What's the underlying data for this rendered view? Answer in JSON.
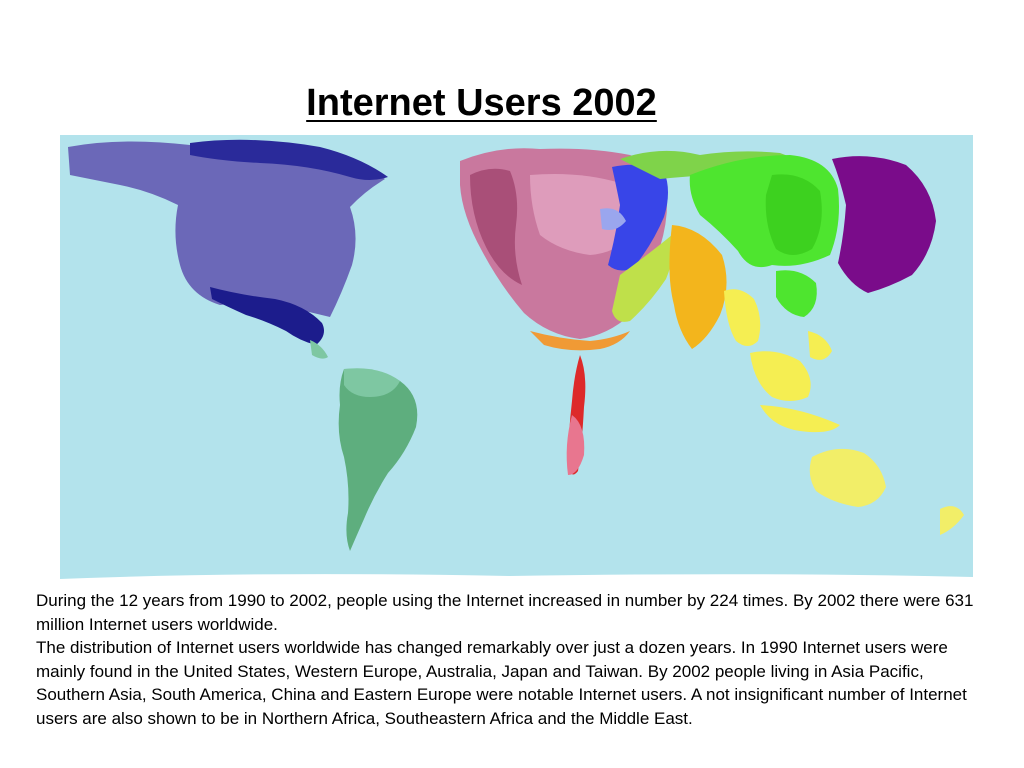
{
  "slide": {
    "title": "Internet Users 2002",
    "map": {
      "type": "cartogram",
      "subject": "internet users by territory",
      "ocean_color": "#b3e3ec",
      "region_colors": {
        "north_america": "#6b68b8",
        "central_america": "#1c1c8c",
        "caribbean": "#7ec7a2",
        "south_america": "#5eae7e",
        "western_europe": "#c9789e",
        "eastern_europe": "#3845e8",
        "northern_africa": "#f09a35",
        "southeastern_africa": "#dd2a2a",
        "middle_east": "#bfe04a",
        "southern_asia": "#f3b51c",
        "china": "#4ee52f",
        "japan": "#7a0c8a",
        "asia_pacific": "#f5ee52",
        "australia": "#f2ee68"
      }
    },
    "caption": [
      "During the 12 years from 1990 to 2002, people using the Internet increased in number by 224 times. By 2002 there were 631 million Internet users worldwide.",
      "The distribution of Internet users worldwide has changed remarkably over just a dozen years. In 1990 Internet users were mainly found in the United States, Western Europe, Australia, Japan and Taiwan. By 2002 people living in Asia Pacific, Southern Asia, South America, China and Eastern Europe were notable Internet users. A not insignificant number of Internet users are also shown to be in Northern Africa, Southeastern Africa and the Middle East."
    ]
  }
}
